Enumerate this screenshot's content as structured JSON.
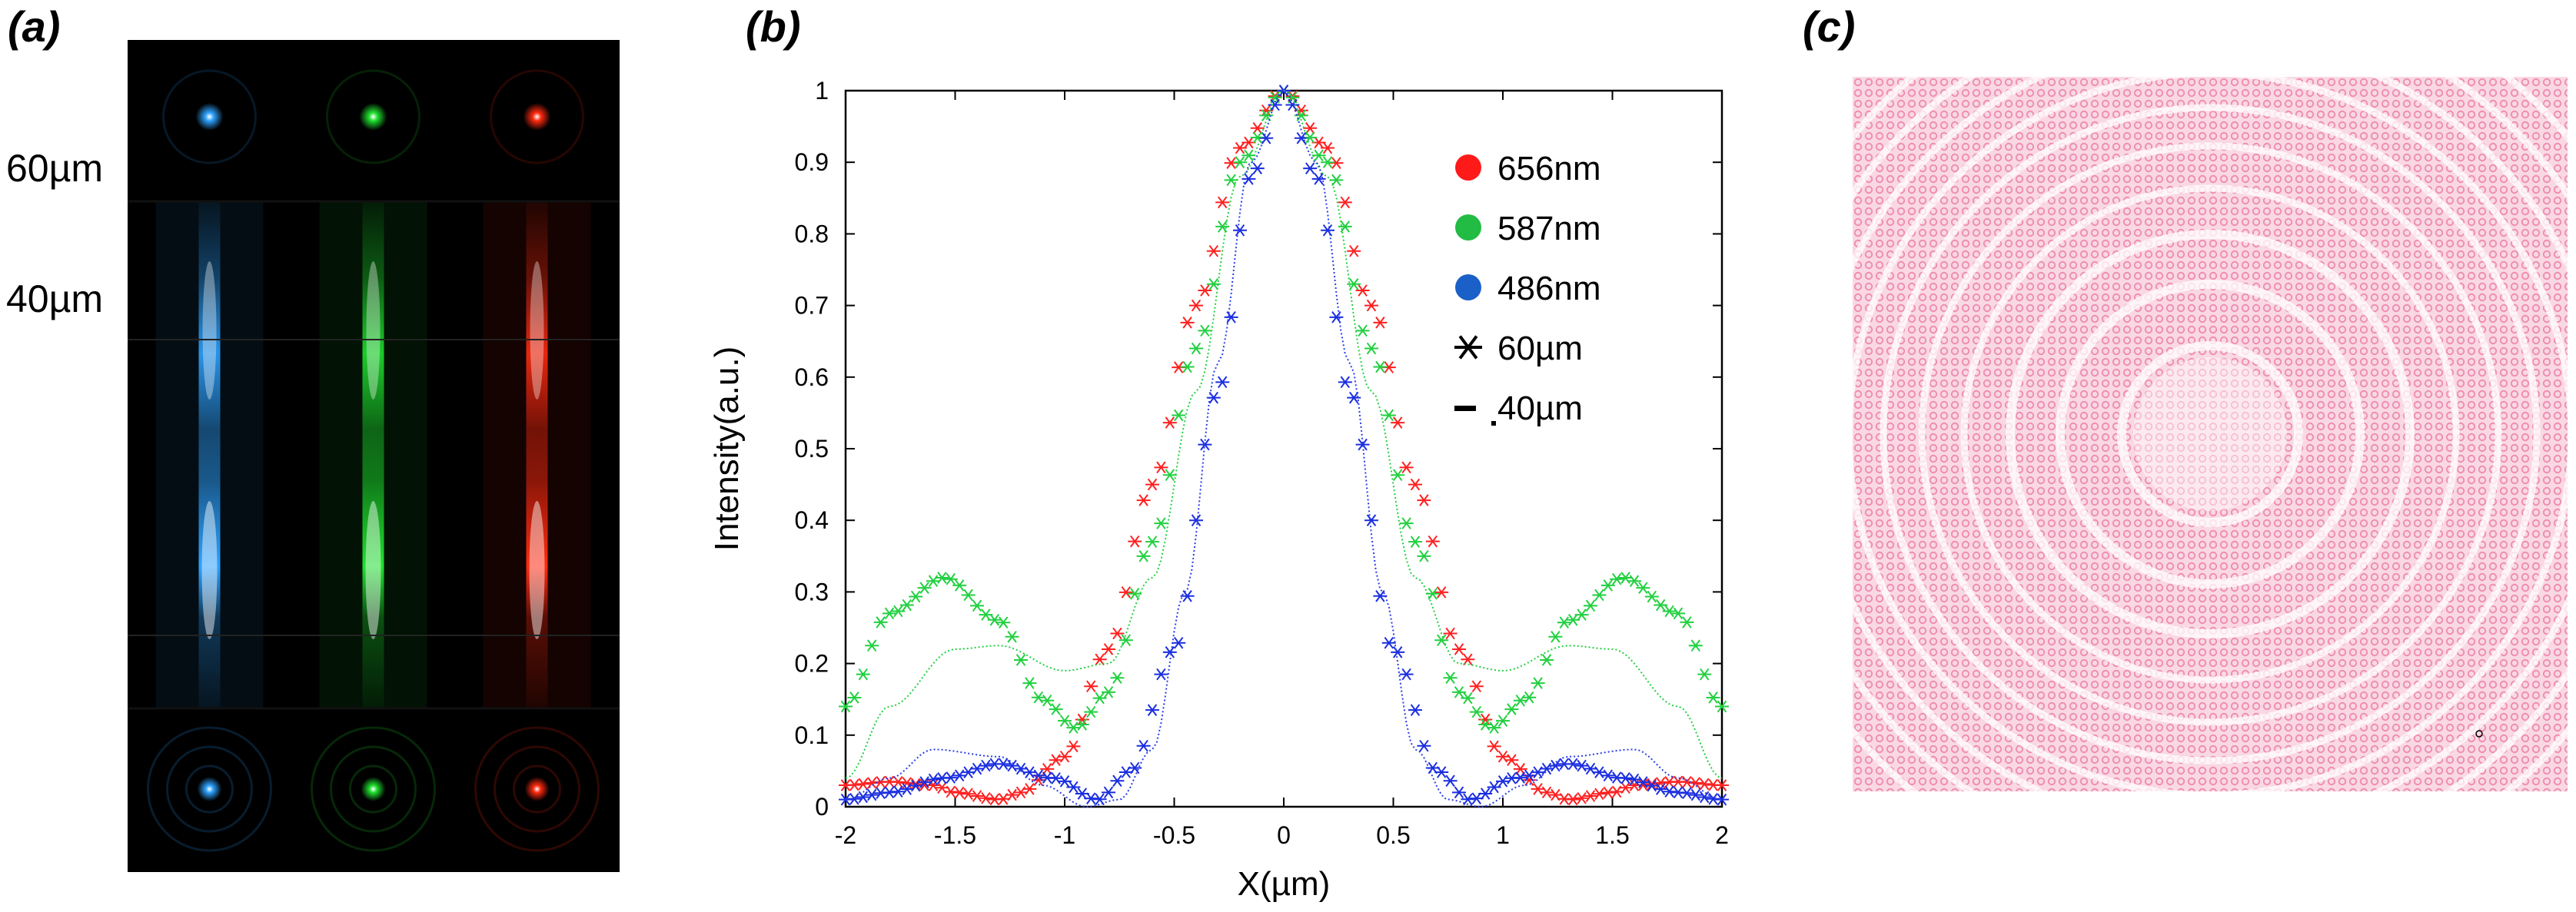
{
  "panel_a": {
    "label": "(a)",
    "depth_labels": [
      "60µm",
      "40µm"
    ],
    "channel_colors": [
      "#2ea2ff",
      "#1fe02f",
      "#ff2a10"
    ]
  },
  "panel_b": {
    "label": "(b)"
  },
  "panel_c": {
    "label": "(c)",
    "ring_color": "#ee8fb0"
  },
  "chart_data": {
    "type": "line",
    "title": "",
    "xlabel": "X(µm)",
    "ylabel": "Intensity(a.u.)",
    "xlim": [
      -2,
      2
    ],
    "ylim": [
      0,
      1
    ],
    "xticks": [
      "-2",
      "-1.5",
      "-1",
      "-0.5",
      "0",
      "0.5",
      "1",
      "1.5",
      "2"
    ],
    "yticks": [
      "0",
      "0.1",
      "0.2",
      "0.3",
      "0.4",
      "0.5",
      "0.6",
      "0.7",
      "0.8",
      "0.9",
      "1"
    ],
    "legend": [
      {
        "label": "656nm",
        "marker": "dot",
        "color": "#ff1a1a"
      },
      {
        "label": "587nm",
        "marker": "dot",
        "color": "#22bb44"
      },
      {
        "label": "486nm",
        "marker": "dot",
        "color": "#1a60c8"
      },
      {
        "label": "60µm",
        "marker": "star",
        "color": "#000000"
      },
      {
        "label": "40µm",
        "marker": "dot-line",
        "color": "#000000"
      }
    ],
    "series": [
      {
        "name": "656nm 60µm",
        "color": "#ff2020",
        "style": "star",
        "x": [
          -2,
          -1.8,
          -1.6,
          -1.5,
          -1.3,
          -1.2,
          -1.0,
          -0.8,
          -0.6,
          -0.4,
          -0.2,
          0,
          0.2,
          0.4,
          0.6,
          0.8,
          1.0,
          1.2,
          1.3,
          1.5,
          1.6,
          1.8,
          2
        ],
        "y": [
          0.03,
          0.035,
          0.03,
          0.02,
          0.01,
          0.02,
          0.07,
          0.22,
          0.45,
          0.7,
          0.92,
          1.0,
          0.92,
          0.7,
          0.45,
          0.22,
          0.07,
          0.02,
          0.01,
          0.02,
          0.03,
          0.035,
          0.03
        ]
      },
      {
        "name": "587nm 60µm",
        "color": "#22d040",
        "style": "star",
        "x": [
          -2,
          -1.8,
          -1.55,
          -1.3,
          -1.1,
          -0.95,
          -0.8,
          -0.6,
          -0.4,
          -0.2,
          0,
          0.2,
          0.4,
          0.6,
          0.8,
          0.95,
          1.1,
          1.3,
          1.55,
          1.8,
          2
        ],
        "y": [
          0.14,
          0.27,
          0.32,
          0.26,
          0.15,
          0.11,
          0.16,
          0.37,
          0.64,
          0.9,
          1.0,
          0.9,
          0.64,
          0.37,
          0.16,
          0.11,
          0.15,
          0.26,
          0.32,
          0.27,
          0.14
        ]
      },
      {
        "name": "486nm 60µm",
        "color": "#1a2ee0",
        "style": "star",
        "x": [
          -2,
          -1.8,
          -1.55,
          -1.3,
          -1.05,
          -0.85,
          -0.7,
          -0.5,
          -0.3,
          -0.15,
          0,
          0.15,
          0.3,
          0.5,
          0.7,
          0.85,
          1.05,
          1.3,
          1.55,
          1.8,
          2
        ],
        "y": [
          0.01,
          0.02,
          0.04,
          0.06,
          0.04,
          0.01,
          0.05,
          0.22,
          0.58,
          0.88,
          1.0,
          0.88,
          0.58,
          0.22,
          0.05,
          0.01,
          0.04,
          0.06,
          0.04,
          0.02,
          0.01
        ]
      },
      {
        "name": "587nm 40µm",
        "color": "#22d040",
        "style": "dotted",
        "x": [
          -2,
          -1.8,
          -1.5,
          -1.3,
          -1.0,
          -0.8,
          -0.6,
          -0.4,
          -0.2,
          0,
          0.2,
          0.4,
          0.6,
          0.8,
          1.0,
          1.3,
          1.5,
          1.8,
          2
        ],
        "y": [
          0.04,
          0.14,
          0.22,
          0.225,
          0.19,
          0.2,
          0.32,
          0.58,
          0.88,
          1.0,
          0.88,
          0.58,
          0.32,
          0.2,
          0.19,
          0.225,
          0.22,
          0.14,
          0.04
        ]
      },
      {
        "name": "486nm 40µm",
        "color": "#2a3ee8",
        "style": "dotted",
        "x": [
          -2,
          -1.8,
          -1.6,
          -1.3,
          -1.1,
          -0.9,
          -0.75,
          -0.6,
          -0.45,
          -0.3,
          -0.15,
          0,
          0.15,
          0.3,
          0.45,
          0.6,
          0.75,
          0.9,
          1.1,
          1.3,
          1.6,
          1.8,
          2
        ],
        "y": [
          0.01,
          0.04,
          0.08,
          0.07,
          0.03,
          0.0,
          0.01,
          0.08,
          0.3,
          0.62,
          0.9,
          1.0,
          0.9,
          0.62,
          0.3,
          0.08,
          0.01,
          0.0,
          0.03,
          0.07,
          0.08,
          0.04,
          0.01
        ]
      }
    ]
  }
}
